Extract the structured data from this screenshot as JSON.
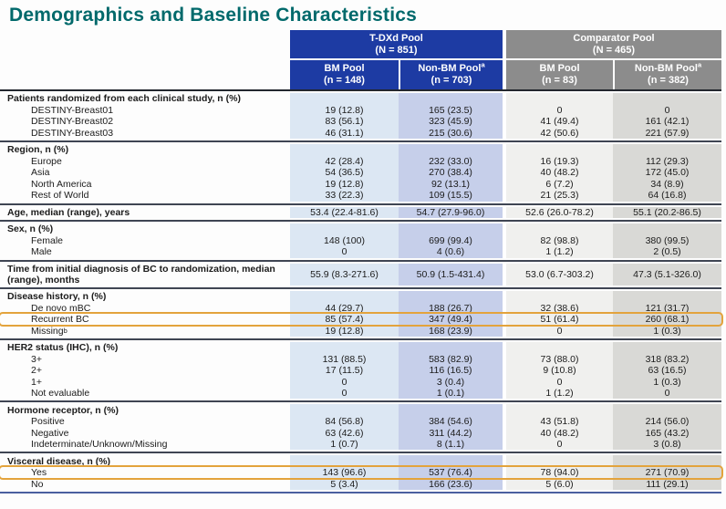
{
  "title": "Demographics and Baseline Characteristics",
  "colors": {
    "title_teal": "#00696B",
    "tdxd_pool_blue": "#1d3ba3",
    "comparator_pool_gray": "#8c8c8c",
    "highlight_orange": "#e3a33c",
    "col_bm_tdxd_bg": "#dce7f3",
    "col_nonbm_tdxd_bg": "#c6cfea",
    "col_bm_comparator_bg": "#f0f0ee",
    "col_nonbm_comparator_bg": "#d9d9d6"
  },
  "table": {
    "groups": [
      {
        "label": "T-DXd Pool",
        "n": "(N = 851)"
      },
      {
        "label": "Comparator Pool",
        "n": "(N = 465)"
      }
    ],
    "columns": [
      {
        "label": "BM Pool",
        "sup": "",
        "n": "(n = 148)"
      },
      {
        "label": "Non-BM Pool",
        "sup": "a",
        "n": "(n = 703)"
      },
      {
        "label": "BM Pool",
        "sup": "",
        "n": "(n = 83)"
      },
      {
        "label": "Non-BM Pool",
        "sup": "a",
        "n": "(n = 382)"
      }
    ],
    "sections": [
      {
        "label": "Patients randomized from each clinical study, n (%)",
        "rows": [
          {
            "label": "DESTINY-Breast01",
            "values": [
              "19 (12.8)",
              "165 (23.5)",
              "0",
              "0"
            ]
          },
          {
            "label": "DESTINY-Breast02",
            "values": [
              "83 (56.1)",
              "323 (45.9)",
              "41 (49.4)",
              "161 (42.1)"
            ]
          },
          {
            "label": "DESTINY-Breast03",
            "values": [
              "46 (31.1)",
              "215 (30.6)",
              "42 (50.6)",
              "221 (57.9)"
            ]
          }
        ]
      },
      {
        "label": "Region, n (%)",
        "rows": [
          {
            "label": "Europe",
            "values": [
              "42 (28.4)",
              "232 (33.0)",
              "16 (19.3)",
              "112 (29.3)"
            ]
          },
          {
            "label": "Asia",
            "values": [
              "54 (36.5)",
              "270 (38.4)",
              "40 (48.2)",
              "172 (45.0)"
            ]
          },
          {
            "label": "North America",
            "values": [
              "19 (12.8)",
              "92 (13.1)",
              "6 (7.2)",
              "34 (8.9)"
            ]
          },
          {
            "label": "Rest of World",
            "values": [
              "33 (22.3)",
              "109 (15.5)",
              "21 (25.3)",
              "64 (16.8)"
            ]
          }
        ]
      },
      {
        "label": "Age, median (range), years",
        "values": [
          "53.4 (22.4-81.6)",
          "54.7 (27.9-96.0)",
          "52.6 (26.0-78.2)",
          "55.1 (20.2-86.5)"
        ]
      },
      {
        "label": "Sex, n (%)",
        "rows": [
          {
            "label": "Female",
            "values": [
              "148 (100)",
              "699 (99.4)",
              "82 (98.8)",
              "380 (99.5)"
            ]
          },
          {
            "label": "Male",
            "values": [
              "0",
              "4 (0.6)",
              "1 (1.2)",
              "2 (0.5)"
            ]
          }
        ]
      },
      {
        "label": "Time from initial diagnosis of BC to randomization, median (range), months",
        "values": [
          "55.9 (8.3-271.6)",
          "50.9 (1.5-431.4)",
          "53.0 (6.7-303.2)",
          "47.3 (5.1-326.0)"
        ]
      },
      {
        "label": "Disease history, n (%)",
        "rows": [
          {
            "label": "De novo mBC",
            "values": [
              "44 (29.7)",
              "188 (26.7)",
              "32 (38.6)",
              "121 (31.7)"
            ]
          },
          {
            "label": "Recurrent BC",
            "highlight": true,
            "values": [
              "85 (57.4)",
              "347 (49.4)",
              "51 (61.4)",
              "260 (68.1)"
            ]
          },
          {
            "label": "Missing",
            "sup": "b",
            "values": [
              "19 (12.8)",
              "168 (23.9)",
              "0",
              "1 (0.3)"
            ]
          }
        ]
      },
      {
        "label": "HER2 status (IHC), n (%)",
        "rows": [
          {
            "label": "3+",
            "values": [
              "131 (88.5)",
              "583 (82.9)",
              "73 (88.0)",
              "318 (83.2)"
            ]
          },
          {
            "label": "2+",
            "values": [
              "17 (11.5)",
              "116 (16.5)",
              "9 (10.8)",
              "63 (16.5)"
            ]
          },
          {
            "label": "1+",
            "values": [
              "0",
              "3 (0.4)",
              "0",
              "1 (0.3)"
            ]
          },
          {
            "label": "Not evaluable",
            "values": [
              "0",
              "1 (0.1)",
              "1 (1.2)",
              "0"
            ]
          }
        ]
      },
      {
        "label": "Hormone receptor, n (%)",
        "rows": [
          {
            "label": "Positive",
            "values": [
              "84 (56.8)",
              "384 (54.6)",
              "43 (51.8)",
              "214 (56.0)"
            ]
          },
          {
            "label": "Negative",
            "values": [
              "63 (42.6)",
              "311 (44.2)",
              "40 (48.2)",
              "165 (43.2)"
            ]
          },
          {
            "label": "Indeterminate/Unknown/Missing",
            "values": [
              "1 (0.7)",
              "8 (1.1)",
              "0",
              "3 (0.8)"
            ]
          }
        ]
      },
      {
        "label": "Visceral disease, n (%)",
        "rows": [
          {
            "label": "Yes",
            "highlight": true,
            "values": [
              "143 (96.6)",
              "537 (76.4)",
              "78 (94.0)",
              "271 (70.9)"
            ]
          },
          {
            "label": "No",
            "values": [
              "5 (3.4)",
              "166 (23.6)",
              "5 (6.0)",
              "111 (29.1)"
            ]
          }
        ]
      }
    ]
  }
}
